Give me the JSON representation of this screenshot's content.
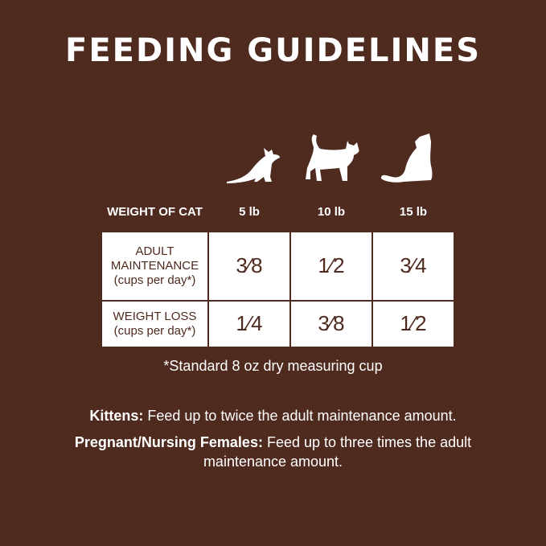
{
  "title": "FEEDING GUIDELINES",
  "icons": [
    "cat-pawing-icon",
    "cat-walking-icon",
    "cat-sitting-icon"
  ],
  "table": {
    "header": [
      "WEIGHT OF CAT",
      "5 lb",
      "10 lb",
      "15 lb"
    ],
    "rows": [
      {
        "label": "ADULT MAINTENANCE",
        "sub": "(cups per day*)",
        "values": [
          "3⁄8",
          "1⁄2",
          "3⁄4"
        ]
      },
      {
        "label": "WEIGHT LOSS",
        "sub": "(cups per day*)",
        "values": [
          "1⁄4",
          "3⁄8",
          "1⁄2"
        ]
      }
    ]
  },
  "footnote": "*Standard 8 oz dry measuring cup",
  "notes": [
    {
      "label": "Kittens:",
      "text": " Feed up to twice the adult maintenance amount."
    },
    {
      "label": "Pregnant/Nursing Females:",
      "text": " Feed up to three times the adult maintenance amount."
    }
  ],
  "colors": {
    "background": "#4f2a1f",
    "table_cell": "#ffffff"
  }
}
